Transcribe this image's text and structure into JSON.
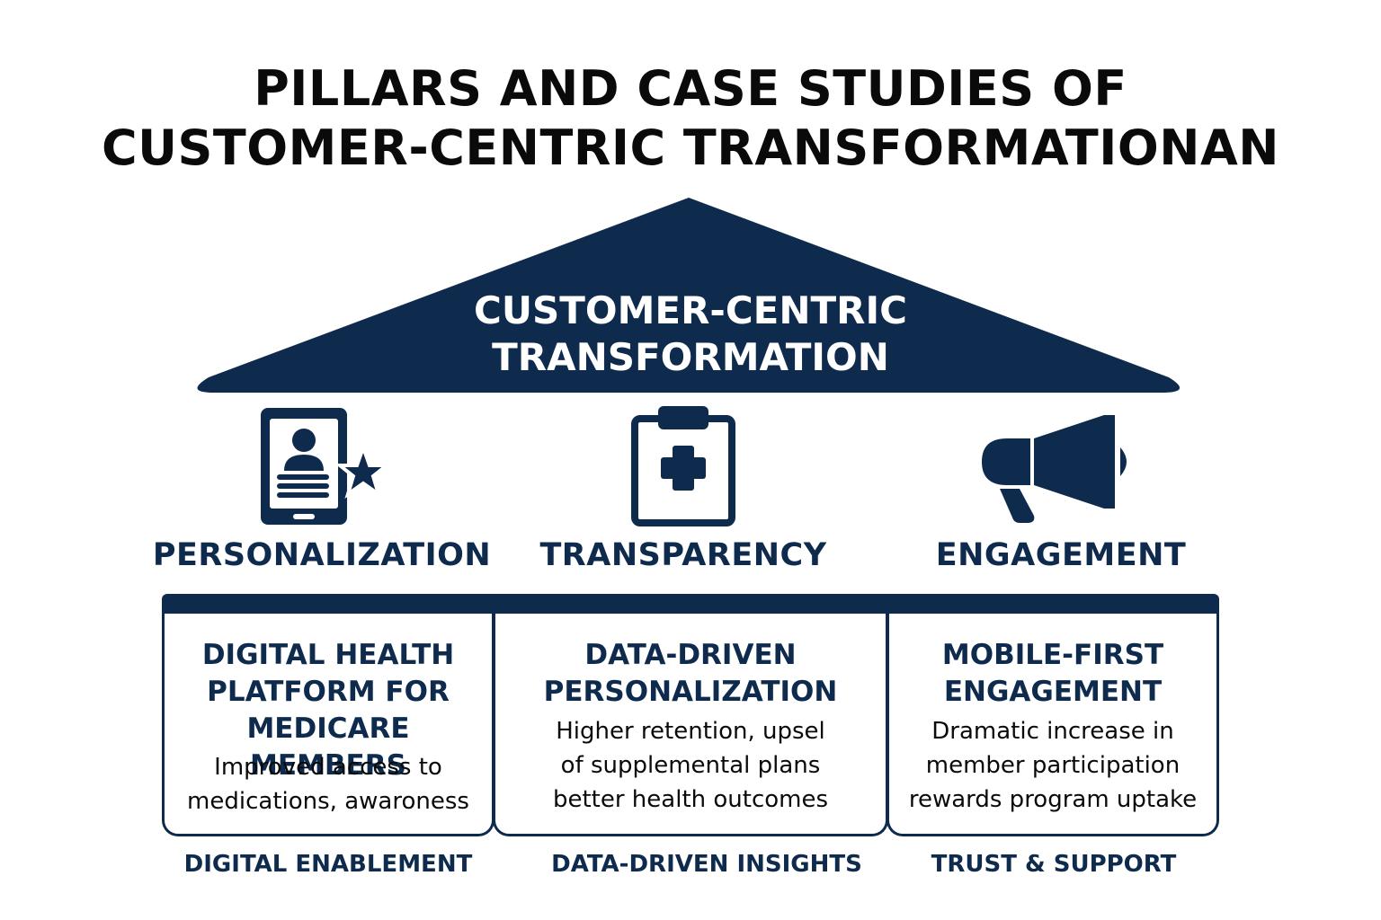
{
  "title": {
    "line1": "PILLARS AND CASE STUDIES OF",
    "line2": "CUSTOMER-CENTRIC TRANSFORMATIONAN"
  },
  "roof": {
    "line1": "CUSTOMER-CENTRIC",
    "line2": "TRANSFORMATION",
    "color": "#0e2a4d"
  },
  "pillars": [
    {
      "label": "PERSONALIZATION",
      "icon": "tablet-profile-star-icon"
    },
    {
      "label": "TRANSPARENCY",
      "icon": "clipboard-medical-icon"
    },
    {
      "label": "ENGAGEMENT",
      "icon": "megaphone-icon"
    }
  ],
  "cards": [
    {
      "title": [
        "DIGITAL HEALTH",
        "PLATFORM FOR",
        "MEDICARE MEMBERS"
      ],
      "body": [
        "Improved access to",
        "medications, awaroness"
      ],
      "footer": "DIGITAL ENABLEMENT"
    },
    {
      "title": [
        "DATA-DRIVEN",
        "PERSONALIZATION"
      ],
      "body": [
        "Higher retention, upsel",
        "of supplemental plans",
        "better health outcomes"
      ],
      "footer": "DATA-DRIVEN INSIGHTS"
    },
    {
      "title": [
        "MOBILE-FIRST",
        "ENGAGEMENT"
      ],
      "body": [
        "Dramatic increase in",
        "member participation",
        "rewards program uptake"
      ],
      "footer": "TRUST & SUPPORT"
    }
  ]
}
